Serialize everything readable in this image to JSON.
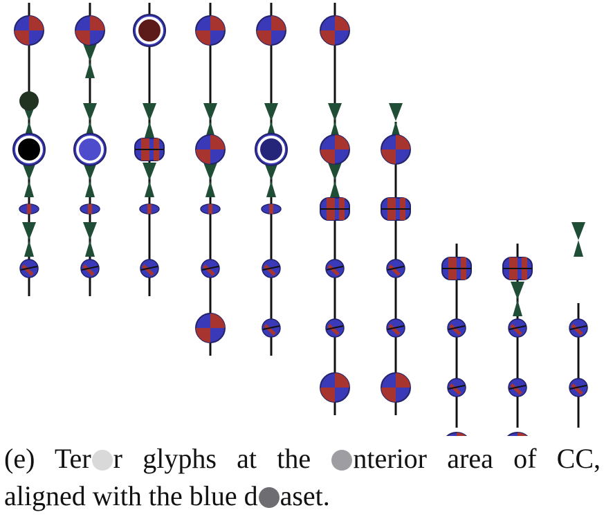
{
  "caption": {
    "line1": {
      "seg1": "(e) Ter",
      "seg2": "r glyphs at the",
      "seg3": "nterior area of CC,"
    },
    "line2": {
      "seg1": "aligned with the blue d",
      "seg2": "aset."
    }
  },
  "blot_colors": [
    "#d9d9d9",
    "#9e9ea2",
    "#6e6e72"
  ],
  "glyph_colors": {
    "stem": "#111111",
    "cone": "#1f4d35",
    "blue": "#3a3ab8",
    "red": "#a8342f",
    "edge": "#22226a"
  },
  "glyph_columns": [
    {
      "glyphs": [
        "ball",
        "dot",
        "ring-black",
        "flat",
        "knot"
      ],
      "cones": [
        false,
        false,
        true,
        true,
        true
      ]
    },
    {
      "glyphs": [
        "ball",
        "none",
        "ring-blue",
        "flat",
        "knot"
      ],
      "cones": [
        false,
        true,
        true,
        true,
        true
      ]
    },
    {
      "glyphs": [
        "ring-red",
        "none",
        "barrel",
        "flat",
        "knot"
      ],
      "cones": [
        false,
        false,
        true,
        true,
        false
      ]
    },
    {
      "glyphs": [
        "ball",
        "none",
        "ball",
        "flat",
        "knot",
        "ball"
      ],
      "cones": [
        false,
        false,
        true,
        true,
        false,
        false
      ]
    },
    {
      "glyphs": [
        "ball",
        "none",
        "ring-navy",
        "flat",
        "knot",
        "knot"
      ],
      "cones": [
        false,
        false,
        true,
        true,
        false,
        false
      ]
    },
    {
      "glyphs": [
        "ball",
        "none",
        "ball",
        "barrel",
        "knot",
        "knot",
        "ball"
      ],
      "cones": [
        false,
        false,
        true,
        true,
        false,
        false,
        false
      ]
    },
    {
      "glyphs": [
        "none",
        "none",
        "ball",
        "barrel",
        "knot",
        "knot",
        "ball"
      ],
      "cones": [
        false,
        false,
        true,
        false,
        false,
        false,
        false
      ]
    },
    {
      "glyphs": [
        "none",
        "none",
        "none",
        "none",
        "barrel",
        "knot",
        "knot",
        "ball"
      ],
      "cones": [
        false,
        false,
        false,
        false,
        false,
        false,
        false,
        false
      ]
    },
    {
      "glyphs": [
        "none",
        "none",
        "none",
        "none",
        "barrel",
        "knot",
        "knot",
        "ball"
      ],
      "cones": [
        false,
        false,
        false,
        false,
        false,
        true,
        false,
        false
      ]
    },
    {
      "glyphs": [
        "none",
        "none",
        "none",
        "none",
        "none",
        "knot",
        "knot",
        "knot"
      ],
      "cones": [
        false,
        false,
        false,
        false,
        true,
        false,
        false,
        false
      ]
    }
  ]
}
